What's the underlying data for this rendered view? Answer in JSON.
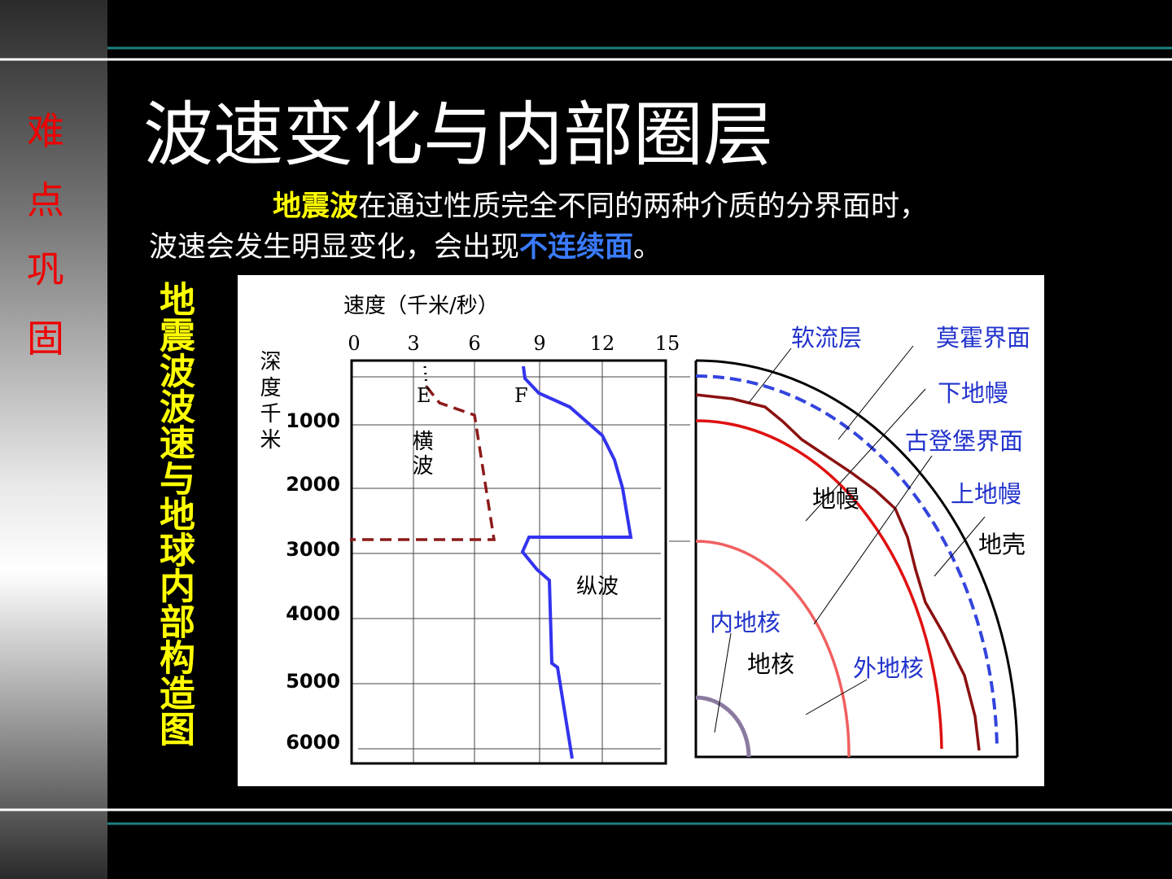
{
  "sidebar": {
    "labels": [
      "难",
      "点",
      "巩",
      "固"
    ]
  },
  "title": "波速变化与内部圈层",
  "intro": {
    "parts": [
      "地震波",
      "在通过性质完全不同的两种介质的分界面时，",
      "波速会发生明显变化，会出现",
      "不连续面",
      "。"
    ]
  },
  "side_caption": "地震波波速与地球内部构造图",
  "diagram": {
    "velocity_axis_title": "速度（千米/秒）",
    "velocity_ticks": [
      0,
      3,
      6,
      9,
      12,
      15
    ],
    "depth_axis_title": "深度千米",
    "depth_ticks": [
      1000,
      2000,
      3000,
      4000,
      5000,
      6000
    ],
    "wave_labels": {
      "E": "E",
      "F": "F",
      "s_wave": "横波",
      "p_wave": "纵波"
    },
    "layers": {
      "asthenosphere": "软流层",
      "moho": "莫霍界面",
      "lower_mantle": "下地幔",
      "gutenberg": "古登堡界面",
      "upper_mantle": "上地幔",
      "crust": "地壳",
      "mantle": "地幔",
      "inner_core": "内地核",
      "core": "地核",
      "outer_core": "外地核"
    }
  }
}
